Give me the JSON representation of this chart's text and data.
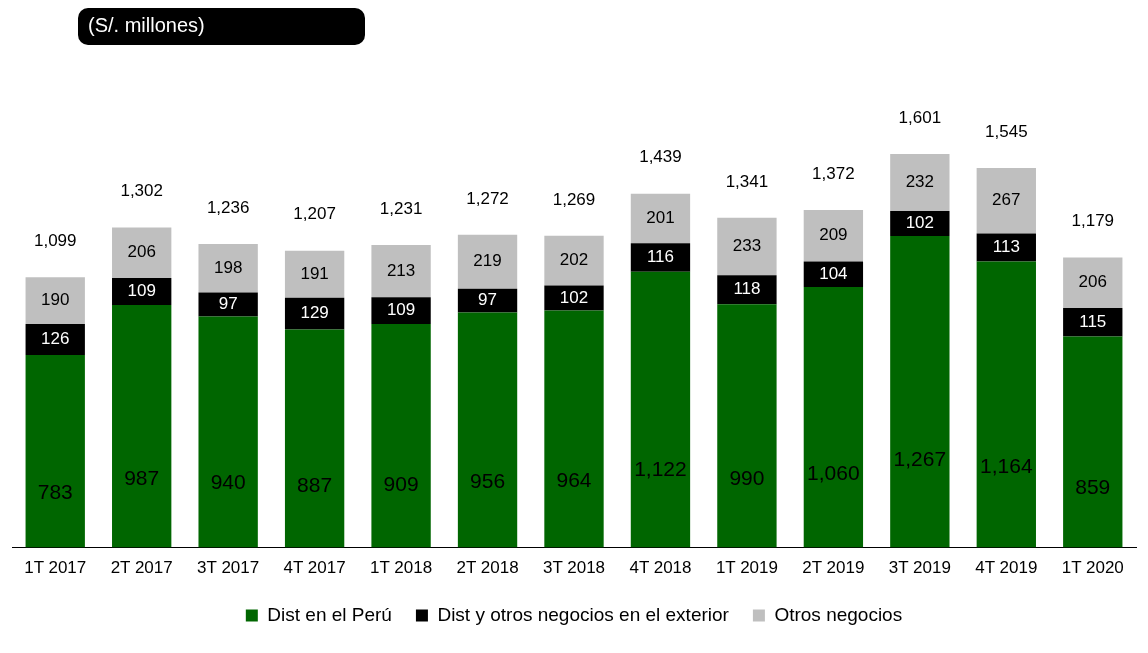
{
  "chart_data": {
    "type": "bar",
    "title": "(S/. millones)",
    "stacked": true,
    "legend": "bottom",
    "categories": [
      "1T 2017",
      "2T 2017",
      "3T 2017",
      "4T 2017",
      "1T 2018",
      "2T 2018",
      "3T 2018",
      "4T 2018",
      "1T 2019",
      "2T 2019",
      "3T 2019",
      "4T 2019",
      "1T 2020"
    ],
    "series": [
      {
        "name": "Dist en el Perú",
        "color": "#006600",
        "values": [
          783,
          987,
          940,
          887,
          909,
          956,
          964,
          1122,
          990,
          1060,
          1267,
          1164,
          859
        ],
        "value_labels": [
          "783",
          "987",
          "940",
          "887",
          "909",
          "956",
          "964",
          "1,122",
          "990",
          "1,060",
          "1,267",
          "1,164",
          "859"
        ]
      },
      {
        "name": "Dist y otros negocios en el exterior",
        "color": "#000000",
        "values": [
          126,
          109,
          97,
          129,
          109,
          97,
          102,
          116,
          118,
          104,
          102,
          113,
          115
        ],
        "value_labels": [
          "126",
          "109",
          "97",
          "129",
          "109",
          "97",
          "102",
          "116",
          "118",
          "104",
          "102",
          "113",
          "115"
        ]
      },
      {
        "name": "Otros negocios",
        "color": "#bfbfbf",
        "values": [
          190,
          206,
          198,
          191,
          213,
          219,
          202,
          201,
          233,
          209,
          232,
          267,
          206
        ],
        "value_labels": [
          "190",
          "206",
          "198",
          "191",
          "213",
          "219",
          "202",
          "201",
          "233",
          "209",
          "232",
          "267",
          "206"
        ]
      }
    ],
    "totals": [
      "1,099",
      "1,302",
      "1,236",
      "1,207",
      "1,231",
      "1,272",
      "1,269",
      "1,439",
      "1,341",
      "1,372",
      "1,601",
      "1,545",
      "1,179"
    ]
  }
}
